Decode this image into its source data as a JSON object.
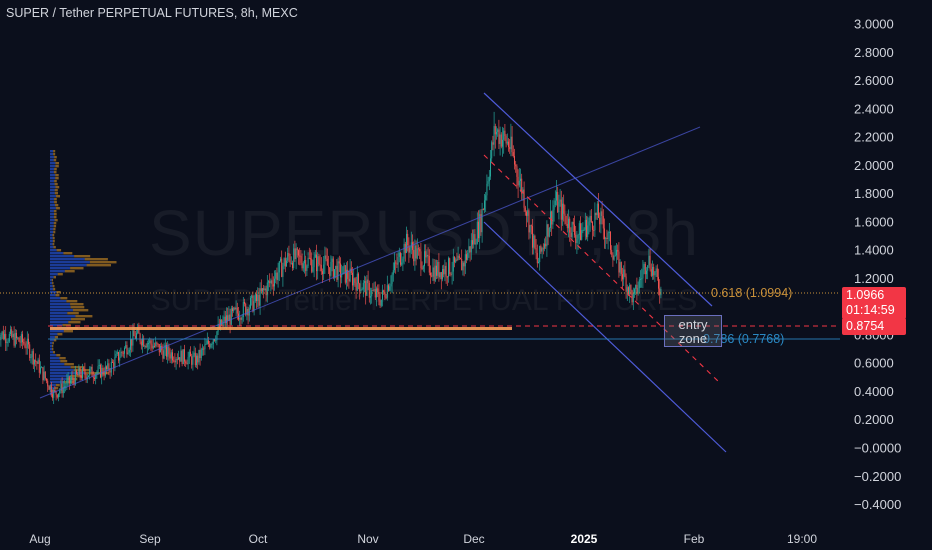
{
  "chart_data": {
    "type": "candlestick",
    "title": "SUPER / Tether PERPETUAL FUTURES, 8h, MEXC",
    "watermark": {
      "symbol": "SUPERUSDTP, 8h",
      "description": "SUPER / Tether PERPETUAL FUTURES"
    },
    "y_axis": {
      "ticks": [
        "3.0000",
        "2.8000",
        "2.6000",
        "2.4000",
        "2.2000",
        "2.0000",
        "1.8000",
        "1.6000",
        "1.4000",
        "1.2000",
        "1.0000",
        "0.8000",
        "0.6000",
        "0.4000",
        "0.2000",
        "−0.0000",
        "−0.2000",
        "−0.4000"
      ],
      "range": [
        -0.45,
        3.1
      ]
    },
    "x_axis": {
      "ticks": [
        "Aug",
        "Sep",
        "Oct",
        "Nov",
        "Dec",
        "2025",
        "Feb",
        "19:00"
      ],
      "bold_tick": "2025"
    },
    "price_path": [
      {
        "date": "2024-07-20",
        "price": 0.82
      },
      {
        "date": "2024-07-28",
        "price": 0.74
      },
      {
        "date": "2024-08-05",
        "price": 0.38
      },
      {
        "date": "2024-08-12",
        "price": 0.52
      },
      {
        "date": "2024-08-20",
        "price": 0.55
      },
      {
        "date": "2024-08-28",
        "price": 0.8
      },
      {
        "date": "2024-09-05",
        "price": 0.68
      },
      {
        "date": "2024-09-14",
        "price": 0.62
      },
      {
        "date": "2024-09-22",
        "price": 0.9
      },
      {
        "date": "2024-10-01",
        "price": 1.04
      },
      {
        "date": "2024-10-10",
        "price": 1.35
      },
      {
        "date": "2024-10-20",
        "price": 1.3
      },
      {
        "date": "2024-10-28",
        "price": 1.2
      },
      {
        "date": "2024-11-05",
        "price": 1.05
      },
      {
        "date": "2024-11-12",
        "price": 1.45
      },
      {
        "date": "2024-11-20",
        "price": 1.25
      },
      {
        "date": "2024-11-28",
        "price": 1.3
      },
      {
        "date": "2024-12-03",
        "price": 1.6
      },
      {
        "date": "2024-12-07",
        "price": 2.25
      },
      {
        "date": "2024-12-11",
        "price": 2.15
      },
      {
        "date": "2024-12-15",
        "price": 1.8
      },
      {
        "date": "2024-12-19",
        "price": 1.3
      },
      {
        "date": "2024-12-24",
        "price": 1.75
      },
      {
        "date": "2024-12-30",
        "price": 1.5
      },
      {
        "date": "2025-01-05",
        "price": 1.65
      },
      {
        "date": "2025-01-10",
        "price": 1.35
      },
      {
        "date": "2025-01-15",
        "price": 1.05
      },
      {
        "date": "2025-01-19",
        "price": 1.35
      },
      {
        "date": "2025-01-23",
        "price": 1.0966
      }
    ],
    "current_price": {
      "value": "1.0966",
      "countdown": "01:14:59",
      "color": "#f23645"
    },
    "level_line": {
      "value": "0.8754",
      "color": "#f23645"
    },
    "fib_levels": [
      {
        "label": "0.618 (1.0994)",
        "value": 1.0994,
        "color": "#c8903a"
      },
      {
        "label": "0.786 (0.7768)",
        "value": 0.7768,
        "color": "#2a89c4"
      }
    ],
    "annotation": {
      "text_line1": "entry",
      "text_line2": "zone"
    },
    "colors": {
      "background": "#0b0f1c",
      "up": "#26a69a",
      "down": "#ef5350",
      "channel": "#4e5bd8"
    }
  }
}
